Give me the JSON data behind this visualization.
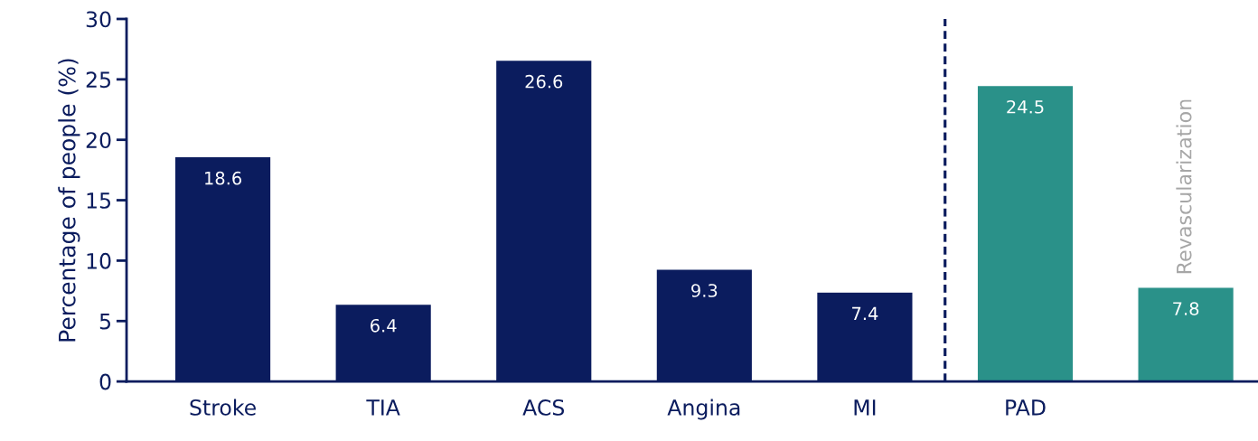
{
  "chart_data": {
    "type": "bar",
    "ylabel": "Percentage of people (%)",
    "categories": [
      "Stroke",
      "TIA",
      "ACS",
      "Angina",
      "MI",
      "PAD",
      null
    ],
    "values": [
      18.6,
      6.4,
      26.6,
      9.3,
      7.4,
      24.5,
      7.8
    ],
    "colors": [
      "#0b1c5e",
      "#0b1c5e",
      "#0b1c5e",
      "#0b1c5e",
      "#0b1c5e",
      "#2a9189",
      "#2a9189"
    ],
    "ylim": [
      0,
      30
    ],
    "yticks": [
      0,
      5,
      10,
      15,
      20,
      25,
      30
    ],
    "annotations": [
      "Revascularization"
    ],
    "data_labels": true
  }
}
